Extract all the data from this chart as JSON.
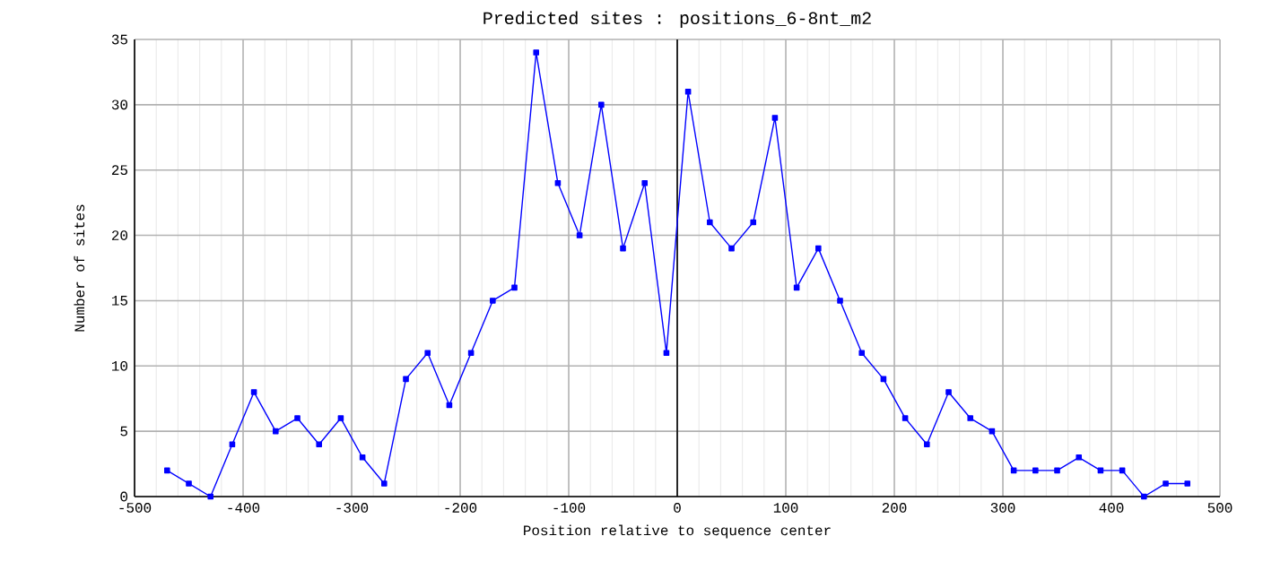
{
  "chart_data": {
    "type": "line",
    "title": "Predicted sites : positions_6-8nt_m2",
    "xlabel": "Position relative to sequence center",
    "ylabel": "Number of sites",
    "x": [
      -470,
      -450,
      -430,
      -410,
      -390,
      -370,
      -350,
      -330,
      -310,
      -290,
      -270,
      -250,
      -230,
      -210,
      -190,
      -170,
      -150,
      -130,
      -110,
      -90,
      -70,
      -50,
      -30,
      -10,
      10,
      30,
      50,
      70,
      90,
      110,
      130,
      150,
      170,
      190,
      210,
      230,
      250,
      270,
      290,
      310,
      330,
      350,
      370,
      390,
      410,
      430,
      450,
      470
    ],
    "series": [
      {
        "color": "#0000ff",
        "values": [
          2,
          1,
          0,
          4,
          8,
          5,
          6,
          4,
          6,
          3,
          1,
          9,
          11,
          7,
          11,
          15,
          16,
          34,
          24,
          20,
          30,
          19,
          24,
          11,
          31,
          21,
          19,
          21,
          29,
          16,
          19,
          15,
          11,
          9,
          6,
          4,
          8,
          6,
          5,
          2,
          2,
          2,
          3,
          2,
          2,
          0,
          1,
          1
        ]
      }
    ],
    "xlim": [
      -500,
      500
    ],
    "xticks": [
      -500,
      -400,
      -300,
      -200,
      -100,
      0,
      100,
      200,
      300,
      400,
      500
    ],
    "ylim": [
      0,
      35
    ],
    "yticks": [
      0,
      5,
      10,
      15,
      20,
      25,
      30,
      35
    ],
    "grid": true,
    "marker": "square",
    "line_style": "solid",
    "ref_lines": [
      {
        "axis": "x",
        "value": 0,
        "color": "#000000"
      }
    ]
  }
}
